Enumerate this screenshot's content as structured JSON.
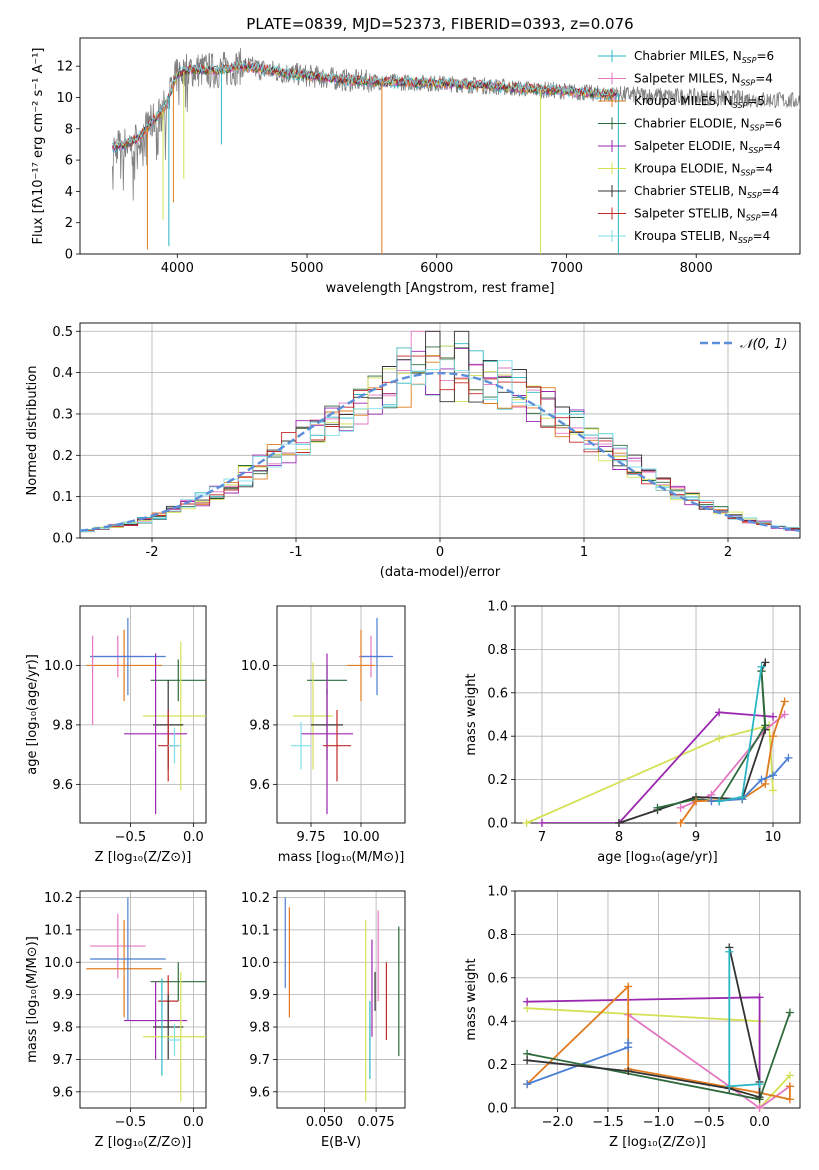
{
  "title": "PLATE=0839, MJD=52373, FIBERID=0393, z=0.076",
  "colors": {
    "Chabrier MILES": "#2ab7c4",
    "Salpeter MILES": "#e377c2",
    "Kroupa MILES": "#e07b20",
    "Chabrier ELODIE": "#2e6b3c",
    "Salpeter ELODIE": "#9b27b0",
    "Kroupa ELODIE": "#d4e157",
    "Chabrier STELIB": "#333333",
    "Salpeter STELIB": "#c62828",
    "Kroupa STELIB": "#80deea",
    "extra_blue": "#4a7fd4",
    "gaussian": "#5b8fd9",
    "grey_spectrum": "#808080"
  },
  "chart_data": [
    {
      "id": "spectrum",
      "type": "line",
      "xlabel": "wavelength [Angstrom, rest frame]",
      "ylabel": "Flux [fλ10⁻¹⁷ erg cm⁻² s⁻¹ A⁻¹]",
      "xlim": [
        3250,
        8800
      ],
      "ylim": [
        0,
        13.8
      ],
      "xticks": [
        4000,
        5000,
        6000,
        7000,
        8000
      ],
      "yticks": [
        0,
        2,
        4,
        6,
        8,
        10,
        12
      ],
      "legend_position": "top-right",
      "legend": [
        {
          "label": "Chabrier MILES, N",
          "sub": "SSP",
          "n": "=6",
          "color_key": "Chabrier MILES"
        },
        {
          "label": "Salpeter MILES, N",
          "sub": "SSP",
          "n": "=4",
          "color_key": "Salpeter MILES"
        },
        {
          "label": "Kroupa MILES, N",
          "sub": "SSP",
          "n": "=5",
          "color_key": "Kroupa MILES"
        },
        {
          "label": "Chabrier ELODIE, N",
          "sub": "SSP",
          "n": "=6",
          "color_key": "Chabrier ELODIE"
        },
        {
          "label": "Salpeter ELODIE, N",
          "sub": "SSP",
          "n": "=4",
          "color_key": "Salpeter ELODIE"
        },
        {
          "label": "Kroupa ELODIE, N",
          "sub": "SSP",
          "n": "=4",
          "color_key": "Kroupa ELODIE"
        },
        {
          "label": "Chabrier STELIB, N",
          "sub": "SSP",
          "n": "=4",
          "color_key": "Chabrier STELIB"
        },
        {
          "label": "Salpeter STELIB, N",
          "sub": "SSP",
          "n": "=4",
          "color_key": "Salpeter STELIB"
        },
        {
          "label": "Kroupa STELIB, N",
          "sub": "SSP",
          "n": "=4",
          "color_key": "Kroupa STELIB"
        }
      ],
      "continuum": [
        [
          3500,
          6.8
        ],
        [
          3600,
          7.0
        ],
        [
          3700,
          7.4
        ],
        [
          3800,
          8.4
        ],
        [
          3900,
          9.3
        ],
        [
          4000,
          11.5
        ],
        [
          4100,
          11.8
        ],
        [
          4300,
          11.7
        ],
        [
          4500,
          12.0
        ],
        [
          4800,
          11.6
        ],
        [
          5000,
          11.4
        ],
        [
          5300,
          11.1
        ],
        [
          5600,
          11.0
        ],
        [
          6000,
          10.9
        ],
        [
          6300,
          10.8
        ],
        [
          6600,
          10.6
        ],
        [
          7000,
          10.4
        ],
        [
          7300,
          10.2
        ],
        [
          7400,
          10.2
        ]
      ],
      "grey_range": [
        3500,
        8800
      ],
      "model_range": [
        3500,
        7400
      ],
      "spikes": [
        [
          3770,
          0.3
        ],
        [
          3890,
          2.2
        ],
        [
          3935,
          0.5
        ],
        [
          3970,
          3.3
        ],
        [
          4050,
          4.8
        ],
        [
          4340,
          7.0
        ],
        [
          5577,
          0
        ],
        [
          6800,
          0
        ],
        [
          7400,
          0
        ]
      ]
    },
    {
      "id": "residuals",
      "type": "histogram",
      "xlabel": "(data-model)/error",
      "ylabel": "Normed distribution",
      "xlim": [
        -2.5,
        2.5
      ],
      "ylim": [
        0,
        0.52
      ],
      "xticks": [
        -2,
        -1,
        0,
        1,
        2
      ],
      "yticks": [
        0,
        0.1,
        0.2,
        0.3,
        0.4,
        0.5
      ],
      "gaussian_label": "𝒩(0, 1)",
      "legend_position": "top-right",
      "bin_width": 0.1,
      "bins_from": -2.5,
      "base_note": "",
      "peak_bin_values": [
        0.47,
        0.5,
        0.44,
        0.46,
        0.42
      ]
    },
    {
      "id": "z_age",
      "type": "errorbar",
      "xlabel": "Z [log₁₀(Z/Z⊙)]",
      "ylabel": "age  [log₁₀(age/yr)]",
      "xlim": [
        -0.9,
        0.1
      ],
      "ylim": [
        9.47,
        10.2
      ],
      "xticks": [
        -0.5,
        0.0
      ],
      "xticklabels": [
        "−0.5",
        "0.0"
      ],
      "yticks": [
        9.6,
        9.8,
        10.0
      ],
      "points": [
        {
          "c": "Salpeter MILES",
          "x": -0.6,
          "y": 10.03,
          "xe": 0.22,
          "ye": 0.07
        },
        {
          "c": "Kroupa MILES",
          "x": -0.55,
          "y": 10.0,
          "xe": 0.3,
          "ye": 0.12
        },
        {
          "c": "extra_blue",
          "x": -0.52,
          "y": 10.03,
          "xe": 0.3,
          "ye": 0.13
        },
        {
          "c": "Chabrier ELODIE",
          "x": -0.12,
          "y": 9.95,
          "xe": 0.22,
          "ye": 0.07
        },
        {
          "c": "Kroupa ELODIE",
          "x": -0.1,
          "y": 9.83,
          "xe": 0.3,
          "ye": 0.25
        },
        {
          "c": "Chabrier STELIB",
          "x": -0.2,
          "y": 9.8,
          "xe": 0.12,
          "ye": 0.15
        },
        {
          "c": "Salpeter ELODIE",
          "x": -0.3,
          "y": 9.77,
          "xe": 0.25,
          "ye": 0.27
        },
        {
          "c": "Salpeter STELIB",
          "x": -0.2,
          "y": 9.73,
          "xe": 0.08,
          "ye": 0.12
        },
        {
          "c": "Kroupa STELIB",
          "x": -0.15,
          "y": 9.73,
          "xe": 0.05,
          "ye": 0.06
        },
        {
          "c": "Salpeter MILES",
          "x": -0.8,
          "y": 9.95,
          "xe": 0.0,
          "ye": 0.15
        }
      ]
    },
    {
      "id": "mass_age",
      "type": "errorbar",
      "xlabel": "mass [log₁₀(M/M⊙)]",
      "ylabel": "",
      "xlim": [
        9.58,
        10.22
      ],
      "ylim": [
        9.47,
        10.2
      ],
      "xticks": [
        9.75,
        10.0
      ],
      "xticklabels": [
        "9.75",
        "10.00"
      ],
      "yticks": [
        9.6,
        9.8,
        10.0
      ],
      "points": [
        {
          "c": "Salpeter MILES",
          "x": 10.05,
          "y": 10.03,
          "xe": 0.06,
          "ye": 0.07
        },
        {
          "c": "Kroupa MILES",
          "x": 10.0,
          "y": 10.0,
          "xe": 0.07,
          "ye": 0.12
        },
        {
          "c": "extra_blue",
          "x": 10.08,
          "y": 10.03,
          "xe": 0.08,
          "ye": 0.13
        },
        {
          "c": "Chabrier ELODIE",
          "x": 9.83,
          "y": 9.95,
          "xe": 0.1,
          "ye": 0.05
        },
        {
          "c": "Kroupa ELODIE",
          "x": 9.76,
          "y": 9.83,
          "xe": 0.1,
          "ye": 0.18
        },
        {
          "c": "Chabrier STELIB",
          "x": 9.83,
          "y": 9.8,
          "xe": 0.08,
          "ye": 0.12
        },
        {
          "c": "Salpeter ELODIE",
          "x": 9.83,
          "y": 9.77,
          "xe": 0.13,
          "ye": 0.27
        },
        {
          "c": "Salpeter STELIB",
          "x": 9.88,
          "y": 9.73,
          "xe": 0.07,
          "ye": 0.12
        },
        {
          "c": "Kroupa STELIB",
          "x": 9.7,
          "y": 9.73,
          "xe": 0.05,
          "ye": 0.08
        }
      ]
    },
    {
      "id": "mw_age",
      "type": "line",
      "xlabel": "age  [log₁₀(age/yr)]",
      "ylabel": "mass weight",
      "xlim": [
        6.65,
        10.35
      ],
      "ylim": [
        0,
        1.0
      ],
      "xticks": [
        7,
        8,
        9,
        10
      ],
      "yticks": [
        0,
        0.2,
        0.4,
        0.6,
        0.8,
        1.0
      ],
      "series": [
        {
          "c": "Kroupa ELODIE",
          "pts": [
            [
              6.8,
              0.0
            ],
            [
              9.3,
              0.39
            ],
            [
              9.95,
              0.45
            ],
            [
              10.0,
              0.15
            ]
          ]
        },
        {
          "c": "Salpeter ELODIE",
          "pts": [
            [
              7.0,
              0.0
            ],
            [
              8.0,
              0.0
            ],
            [
              9.3,
              0.51
            ],
            [
              10.0,
              0.49
            ]
          ]
        },
        {
          "c": "Salpeter MILES",
          "pts": [
            [
              8.8,
              0.07
            ],
            [
              9.0,
              0.1
            ],
            [
              9.2,
              0.13
            ],
            [
              9.9,
              0.43
            ],
            [
              10.15,
              0.5
            ]
          ]
        },
        {
          "c": "Chabrier STELIB",
          "pts": [
            [
              8.0,
              0.0
            ],
            [
              8.5,
              0.06
            ],
            [
              9.0,
              0.12
            ],
            [
              9.6,
              0.11
            ],
            [
              9.9,
              0.43
            ],
            [
              9.85,
              0.7
            ],
            [
              9.9,
              0.74
            ]
          ]
        },
        {
          "c": "Chabrier ELODIE",
          "pts": [
            [
              8.5,
              0.07
            ],
            [
              9.0,
              0.11
            ],
            [
              9.3,
              0.1
            ],
            [
              9.9,
              0.45
            ],
            [
              9.85,
              0.7
            ]
          ]
        },
        {
          "c": "Kroupa MILES",
          "pts": [
            [
              8.8,
              0.0
            ],
            [
              9.0,
              0.1
            ],
            [
              9.6,
              0.11
            ],
            [
              9.9,
              0.18
            ],
            [
              10.0,
              0.4
            ],
            [
              10.15,
              0.56
            ]
          ]
        },
        {
          "c": "extra_blue",
          "pts": [
            [
              9.2,
              0.1
            ],
            [
              9.6,
              0.11
            ],
            [
              9.85,
              0.2
            ],
            [
              10.0,
              0.22
            ],
            [
              10.2,
              0.3
            ]
          ]
        },
        {
          "c": "Chabrier MILES",
          "pts": [
            [
              9.3,
              0.1
            ],
            [
              9.6,
              0.12
            ],
            [
              9.85,
              0.72
            ]
          ]
        }
      ]
    },
    {
      "id": "z_mass",
      "type": "errorbar",
      "xlabel": "Z [log₁₀(Z/Z⊙)]",
      "ylabel": "mass [log₁₀(M/M⊙)]",
      "xlim": [
        -0.9,
        0.1
      ],
      "ylim": [
        9.55,
        10.22
      ],
      "xticks": [
        -0.5,
        0.0
      ],
      "xticklabels": [
        "−0.5",
        "0.0"
      ],
      "yticks": [
        9.6,
        9.7,
        9.8,
        9.9,
        10.0,
        10.1,
        10.2
      ],
      "points": [
        {
          "c": "Salpeter MILES",
          "x": -0.6,
          "y": 10.05,
          "xe": 0.22,
          "ye": 0.1
        },
        {
          "c": "Kroupa MILES",
          "x": -0.55,
          "y": 9.98,
          "xe": 0.3,
          "ye": 0.15
        },
        {
          "c": "extra_blue",
          "x": -0.52,
          "y": 10.01,
          "xe": 0.3,
          "ye": 0.19
        },
        {
          "c": "Chabrier ELODIE",
          "x": -0.12,
          "y": 9.94,
          "xe": 0.22,
          "ye": 0.06
        },
        {
          "c": "Salpeter ELODIE",
          "x": -0.3,
          "y": 9.82,
          "xe": 0.25,
          "ye": 0.12
        },
        {
          "c": "Salpeter STELIB",
          "x": -0.2,
          "y": 9.88,
          "xe": 0.08,
          "ye": 0.08
        },
        {
          "c": "Chabrier STELIB",
          "x": -0.2,
          "y": 9.8,
          "xe": 0.12,
          "ye": 0.1
        },
        {
          "c": "Kroupa STELIB",
          "x": -0.15,
          "y": 9.76,
          "xe": 0.05,
          "ye": 0.05
        },
        {
          "c": "Kroupa ELODIE",
          "x": -0.1,
          "y": 9.77,
          "xe": 0.3,
          "ye": 0.2
        },
        {
          "c": "Chabrier MILES",
          "x": -0.25,
          "y": 9.8,
          "xe": 0.0,
          "ye": 0.15
        }
      ]
    },
    {
      "id": "ebv_mass",
      "type": "errorbar",
      "xlabel": "E(B-V)",
      "ylabel": "",
      "xlim": [
        0.027,
        0.089
      ],
      "ylim": [
        9.55,
        10.22
      ],
      "xticks": [
        0.05,
        0.075
      ],
      "xticklabels": [
        "0.050",
        "0.075"
      ],
      "yticks": [
        9.6,
        9.7,
        9.8,
        9.9,
        10.0,
        10.1,
        10.2
      ],
      "points": [
        {
          "c": "extra_blue",
          "x": 0.031,
          "y": 10.06,
          "xe": 0,
          "ye": 0.14
        },
        {
          "c": "Kroupa MILES",
          "x": 0.033,
          "y": 10.0,
          "xe": 0,
          "ye": 0.17
        },
        {
          "c": "Kroupa ELODIE",
          "x": 0.07,
          "y": 9.85,
          "xe": 0,
          "ye": 0.28
        },
        {
          "c": "Chabrier MILES",
          "x": 0.072,
          "y": 9.76,
          "xe": 0,
          "ye": 0.12
        },
        {
          "c": "Salpeter ELODIE",
          "x": 0.073,
          "y": 9.92,
          "xe": 0,
          "ye": 0.15
        },
        {
          "c": "Salpeter MILES",
          "x": 0.076,
          "y": 10.02,
          "xe": 0,
          "ye": 0.14
        },
        {
          "c": "Salpeter STELIB",
          "x": 0.08,
          "y": 9.88,
          "xe": 0,
          "ye": 0.12
        },
        {
          "c": "Chabrier ELODIE",
          "x": 0.086,
          "y": 9.91,
          "xe": 0,
          "ye": 0.2
        },
        {
          "c": "Chabrier STELIB",
          "x": 0.0745,
          "y": 9.91,
          "xe": 0,
          "ye": 0.06
        }
      ]
    },
    {
      "id": "mw_z",
      "type": "line",
      "xlabel": "Z [log₁₀(Z/Z⊙)]",
      "ylabel": "mass weight",
      "xlim": [
        -2.42,
        0.4
      ],
      "ylim": [
        0,
        1.0
      ],
      "xticks": [
        -2.0,
        -1.5,
        -1.0,
        -0.5,
        0.0
      ],
      "xticklabels": [
        "−2.0",
        "−1.5",
        "−1.0",
        "−0.5",
        "0.0"
      ],
      "yticks": [
        0,
        0.2,
        0.4,
        0.6,
        0.8,
        1.0
      ],
      "series": [
        {
          "c": "Kroupa ELODIE",
          "pts": [
            [
              -2.3,
              0.46
            ],
            [
              0.0,
              0.4
            ],
            [
              0.0,
              0.0
            ],
            [
              0.3,
              0.15
            ]
          ]
        },
        {
          "c": "Salpeter ELODIE",
          "pts": [
            [
              -2.3,
              0.49
            ],
            [
              0.0,
              0.51
            ],
            [
              0.0,
              0.07
            ]
          ]
        },
        {
          "c": "Salpeter MILES",
          "pts": [
            [
              -1.3,
              0.43
            ],
            [
              -0.3,
              0.1
            ],
            [
              0.0,
              0.0
            ],
            [
              0.3,
              0.1
            ]
          ]
        },
        {
          "c": "Kroupa MILES",
          "pts": [
            [
              -2.3,
              0.11
            ],
            [
              -1.3,
              0.56
            ],
            [
              -1.3,
              0.18
            ],
            [
              0.0,
              0.07
            ],
            [
              0.3,
              0.04
            ],
            [
              0.3,
              0.1
            ]
          ]
        },
        {
          "c": "extra_blue",
          "pts": [
            [
              -2.3,
              0.11
            ],
            [
              -1.3,
              0.28
            ],
            [
              -1.3,
              0.3
            ]
          ]
        },
        {
          "c": "Chabrier ELODIE",
          "pts": [
            [
              -2.3,
              0.25
            ],
            [
              0.0,
              0.04
            ],
            [
              0.3,
              0.44
            ]
          ]
        },
        {
          "c": "Chabrier STELIB",
          "pts": [
            [
              -2.3,
              0.22
            ],
            [
              -1.3,
              0.17
            ],
            [
              -0.3,
              0.09
            ],
            [
              0.0,
              0.05
            ],
            [
              0.0,
              0.12
            ],
            [
              -0.3,
              0.74
            ]
          ]
        },
        {
          "c": "Chabrier MILES",
          "pts": [
            [
              -0.3,
              0.72
            ],
            [
              -0.3,
              0.1
            ],
            [
              0.0,
              0.11
            ]
          ]
        }
      ]
    }
  ]
}
